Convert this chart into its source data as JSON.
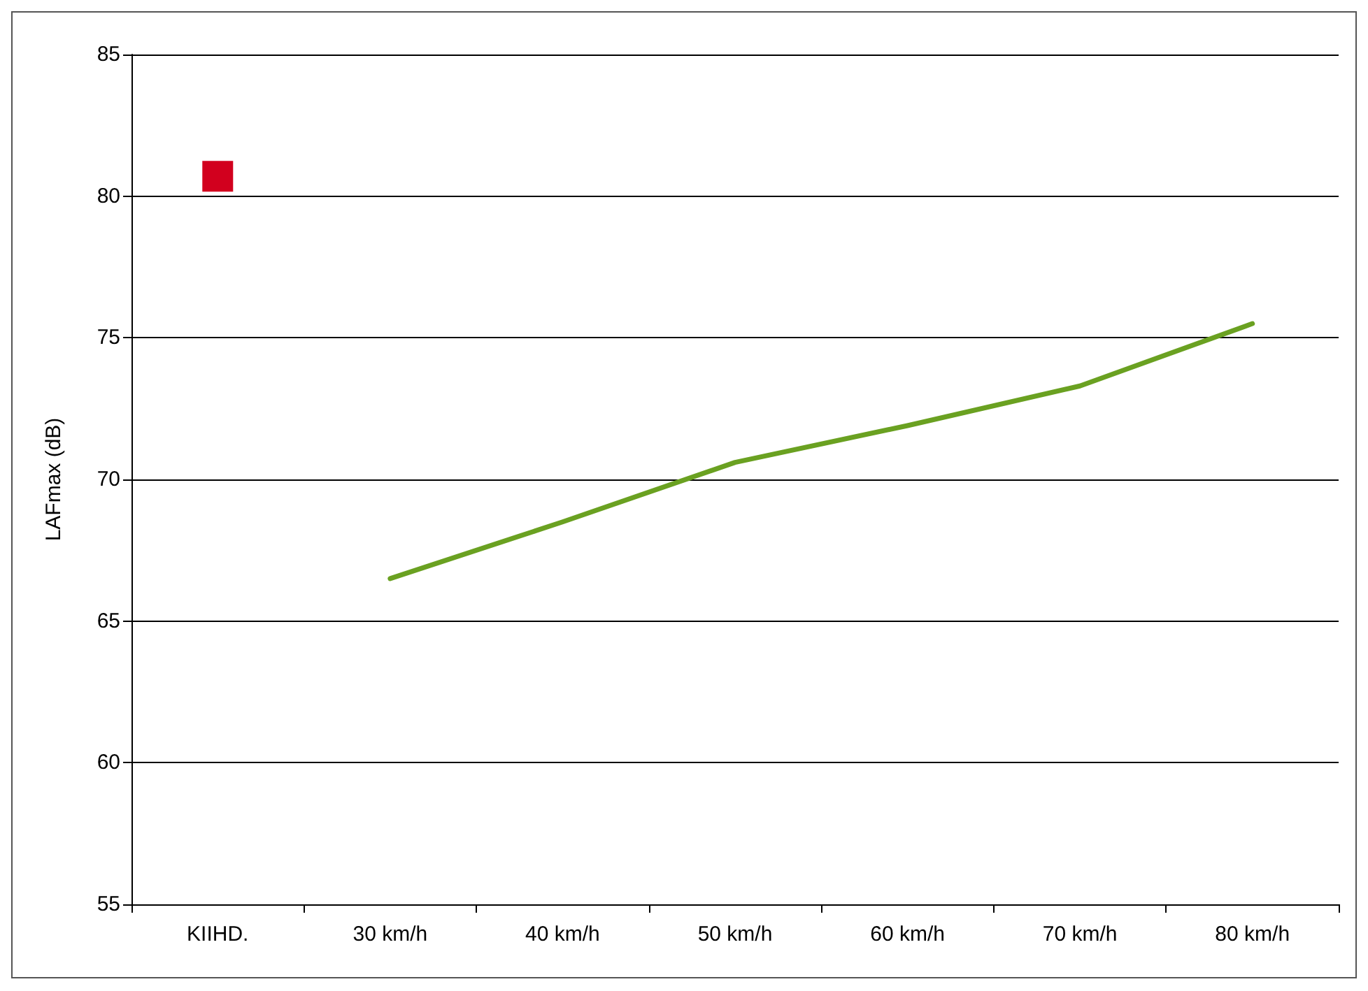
{
  "chart_data": {
    "type": "line",
    "ylabel": "LAFmax (dB)",
    "categories": [
      "KIIHD.",
      "30 km/h",
      "40 km/h",
      "50 km/h",
      "60 km/h",
      "70 km/h",
      "80 km/h"
    ],
    "series": [
      {
        "type": "scatter",
        "marker": "square",
        "color": "#d2001e",
        "values": [
          80.7,
          null,
          null,
          null,
          null,
          null,
          null
        ]
      },
      {
        "marker": "none",
        "color": "#6aa121",
        "values": [
          null,
          66.5,
          68.5,
          70.6,
          71.9,
          73.3,
          75.5
        ]
      }
    ],
    "ylim": [
      55,
      85
    ],
    "yticks": [
      55,
      60,
      65,
      70,
      75,
      80,
      85
    ],
    "grid": "y"
  }
}
